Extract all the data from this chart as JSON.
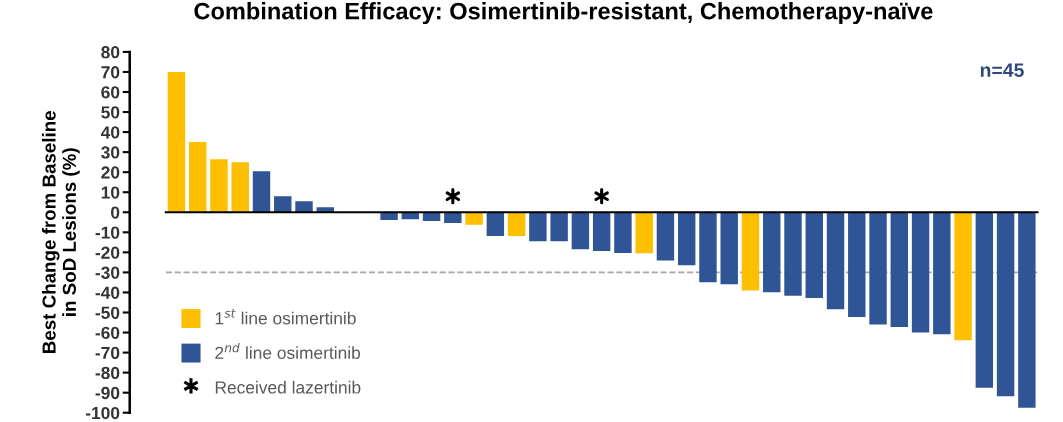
{
  "chart_data": {
    "type": "bar",
    "title": "Combination Efficacy: Osimertinib-resistant, Chemotherapy-naïve",
    "ylabel": "Best Change from Baseline\nin SoD Lesions (%)",
    "categories": [
      null,
      null,
      null,
      null,
      null,
      null,
      null,
      null,
      null,
      null,
      null,
      null,
      null,
      null,
      null,
      null,
      null,
      null,
      null,
      null,
      null,
      null,
      null,
      null,
      null,
      null,
      null,
      null,
      null,
      null,
      null,
      null,
      null,
      null,
      null,
      null,
      null,
      null,
      null,
      null,
      null
    ],
    "series": [
      {
        "name": "1$^{st}$ line osimertinib",
        "color": "#fdbf00",
        "values": [
          70,
          35,
          26.5,
          25,
          null,
          null,
          null,
          null,
          null,
          null,
          null,
          null,
          null,
          null,
          -6.2,
          null,
          -11.8,
          null,
          null,
          null,
          null,
          null,
          -20.5,
          null,
          null,
          null,
          null,
          -39,
          null,
          null,
          null,
          null,
          null,
          null,
          null,
          null,
          null,
          -63.8,
          null,
          null,
          null
        ]
      },
      {
        "name": "2$^{nd}$ line osimertinib",
        "color": "#2f5597",
        "values": [
          null,
          null,
          null,
          null,
          20.5,
          8,
          5.5,
          2.5,
          null,
          null,
          -3.8,
          -3.5,
          -4.4,
          -5.4,
          null,
          -11.8,
          null,
          -14.4,
          -14.4,
          -18.4,
          -19.3,
          -20.3,
          null,
          -24.1,
          -26.4,
          -34.9,
          -35.9,
          null,
          -39.9,
          -41.7,
          -42.8,
          -48.4,
          -52.2,
          -56,
          -57.2,
          -60,
          -60.8,
          null,
          -87.6,
          -91.8,
          -97.5
        ]
      },
      {
        "name": "Received lazertinib",
        "type": "scatter",
        "color": "#000000",
        "marker": "cross",
        "values": [
          null,
          null,
          null,
          null,
          null,
          null,
          null,
          null,
          null,
          null,
          null,
          null,
          null,
          8,
          null,
          null,
          null,
          null,
          null,
          null,
          8,
          null,
          null,
          null,
          null,
          null,
          null,
          null,
          null,
          null,
          null,
          null,
          null,
          null,
          null,
          null,
          null,
          null,
          null,
          null,
          null
        ]
      }
    ],
    "ylim": [
      -100,
      80
    ],
    "yticks": [
      -100,
      -90,
      -80,
      -70,
      -60,
      -50,
      -40,
      -30,
      -20,
      -10,
      0,
      10,
      20,
      30,
      40,
      50,
      60,
      70,
      80
    ],
    "ref_lines": [
      {
        "axis": "y",
        "value": -30,
        "color": "#a6a6a6",
        "line_style": "dashed"
      }
    ],
    "annotations": [
      "n=45"
    ],
    "legend": "bottom left",
    "grid": false
  }
}
